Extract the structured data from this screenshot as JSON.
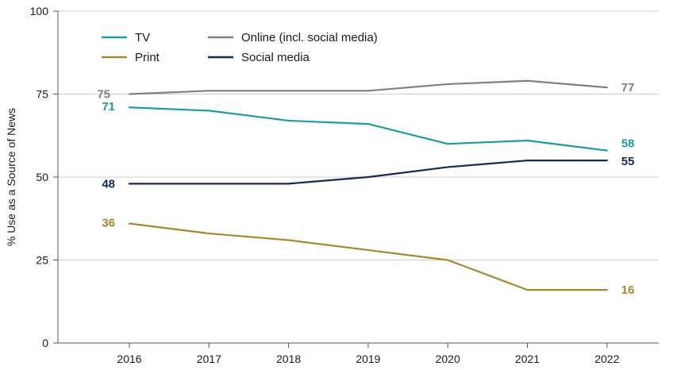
{
  "chart_data": {
    "type": "line",
    "title": "",
    "xlabel": "",
    "ylabel": "% Use as a Source of News",
    "ylim": [
      0,
      100
    ],
    "yticks": [
      0,
      25,
      50,
      75,
      100
    ],
    "x": [
      "2016",
      "2017",
      "2018",
      "2019",
      "2020",
      "2021",
      "2022"
    ],
    "grid": "horizontal",
    "legend_position": "top-left",
    "series": [
      {
        "name": "TV",
        "color": "#1a9ba8",
        "values": [
          71,
          70,
          67,
          66,
          60,
          61,
          58
        ],
        "start_label": "71",
        "end_label": "58"
      },
      {
        "name": "Online (incl. social media)",
        "color": "#808080",
        "values": [
          75,
          76,
          76,
          76,
          78,
          79,
          77
        ],
        "start_label": "75",
        "end_label": "77"
      },
      {
        "name": "Print",
        "color": "#a8862a",
        "values": [
          36,
          33,
          31,
          28,
          25,
          16,
          16
        ],
        "start_label": "36",
        "end_label": "16"
      },
      {
        "name": "Social media",
        "color": "#0d2b5e",
        "values": [
          48,
          48,
          48,
          50,
          53,
          55,
          55
        ],
        "start_label": "48",
        "end_label": "55"
      }
    ]
  }
}
